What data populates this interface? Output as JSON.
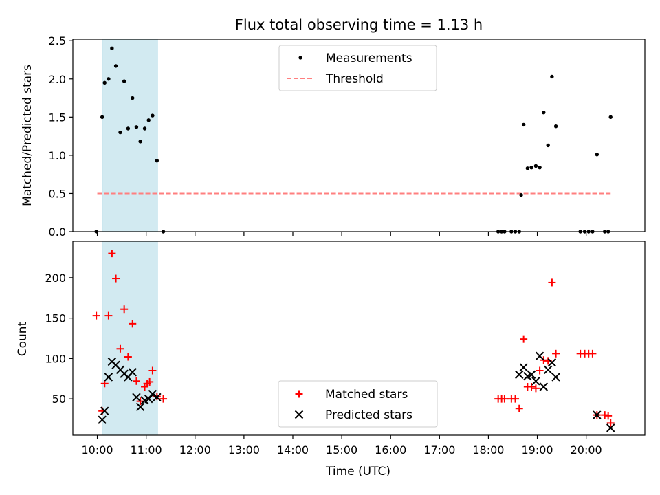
{
  "title": "Flux total observing time = 1.13 h",
  "colors": {
    "measurement": "#000000",
    "threshold": "#ff7f7f",
    "shade": "#add8e6",
    "matched": "#ff0000",
    "predicted": "#000000"
  },
  "chart_data": [
    {
      "type": "scatter",
      "ylabel": "Matched/Predicted stars",
      "xlabel": "",
      "xlim": [
        9.5,
        21.2
      ],
      "ylim": [
        0,
        2.52
      ],
      "yticks": [
        0.0,
        0.5,
        1.0,
        1.5,
        2.0,
        2.5
      ],
      "ytick_labels": [
        "0.0",
        "0.5",
        "1.0",
        "1.5",
        "2.0",
        "2.5"
      ],
      "shaded_span": [
        10.1,
        11.23
      ],
      "threshold": {
        "y": 0.5,
        "x_start": 10.0,
        "x_end": 20.5,
        "label": "Threshold"
      },
      "legend": {
        "position": "top-center",
        "entries": [
          "Measurements",
          "Threshold"
        ]
      },
      "series": [
        {
          "name": "Measurements",
          "marker": "dot",
          "x": [
            9.98,
            10.1,
            10.15,
            10.23,
            10.3,
            10.38,
            10.47,
            10.55,
            10.63,
            10.72,
            10.8,
            10.88,
            10.97,
            11.05,
            11.13,
            11.22,
            11.35,
            18.2,
            18.27,
            18.33,
            18.47,
            18.55,
            18.63,
            18.67,
            18.72,
            18.8,
            18.88,
            18.97,
            19.05,
            19.13,
            19.22,
            19.3,
            19.38,
            19.88,
            19.97,
            20.05,
            20.13,
            20.22,
            20.38,
            20.45,
            20.5
          ],
          "y": [
            0.0,
            1.5,
            1.95,
            2.0,
            2.4,
            2.17,
            1.3,
            1.97,
            1.35,
            1.75,
            1.37,
            1.18,
            1.35,
            1.46,
            1.52,
            0.93,
            0.0,
            0.0,
            0.0,
            0.0,
            0.0,
            0.0,
            0.0,
            0.48,
            1.4,
            0.83,
            0.84,
            0.86,
            0.84,
            1.56,
            1.13,
            2.03,
            1.38,
            0.0,
            0.0,
            0.0,
            0.0,
            1.01,
            0.0,
            0.0,
            1.5
          ]
        }
      ]
    },
    {
      "type": "scatter",
      "ylabel": "Count",
      "xlabel": "Time (UTC)",
      "xlim": [
        9.5,
        21.2
      ],
      "ylim": [
        5,
        245
      ],
      "yticks": [
        50,
        100,
        150,
        200
      ],
      "ytick_labels": [
        "50",
        "100",
        "150",
        "200"
      ],
      "xticks": [
        10,
        11,
        12,
        13,
        14,
        15,
        16,
        17,
        18,
        19,
        20
      ],
      "xtick_labels": [
        "10:00",
        "11:00",
        "12:00",
        "13:00",
        "14:00",
        "15:00",
        "16:00",
        "17:00",
        "18:00",
        "19:00",
        "20:00"
      ],
      "shaded_span": [
        10.1,
        11.23
      ],
      "legend": {
        "position": "bottom-center",
        "entries": [
          "Matched stars",
          "Predicted stars"
        ]
      },
      "series": [
        {
          "name": "Matched stars",
          "marker": "plus",
          "x": [
            9.98,
            10.1,
            10.15,
            10.23,
            10.3,
            10.38,
            10.47,
            10.55,
            10.63,
            10.72,
            10.8,
            10.88,
            10.97,
            11.02,
            11.07,
            11.13,
            11.22,
            11.35,
            18.2,
            18.27,
            18.33,
            18.47,
            18.55,
            18.63,
            18.72,
            18.8,
            18.88,
            18.97,
            19.05,
            19.13,
            19.22,
            19.3,
            19.38,
            19.88,
            19.97,
            20.05,
            20.13,
            20.22,
            20.38,
            20.45,
            20.5
          ],
          "y": [
            153,
            35,
            69,
            153,
            230,
            199,
            112,
            161,
            102,
            143,
            72,
            47,
            65,
            69,
            71,
            85,
            53,
            50,
            50,
            50,
            50,
            50,
            50,
            38,
            124,
            65,
            65,
            63,
            85,
            98,
            97,
            194,
            106,
            106,
            106,
            106,
            106,
            30,
            30,
            29,
            20
          ]
        },
        {
          "name": "Predicted stars",
          "marker": "x",
          "x": [
            10.1,
            10.15,
            10.23,
            10.3,
            10.38,
            10.47,
            10.55,
            10.63,
            10.72,
            10.8,
            10.88,
            10.97,
            11.05,
            11.13,
            11.22,
            18.63,
            18.72,
            18.8,
            18.88,
            18.97,
            19.05,
            19.13,
            19.22,
            19.3,
            19.38,
            20.22,
            20.5
          ],
          "y": [
            24,
            35,
            77,
            96,
            92,
            86,
            81,
            77,
            83,
            52,
            40,
            48,
            50,
            56,
            52,
            80,
            89,
            78,
            80,
            72,
            103,
            65,
            86,
            95,
            77,
            30,
            14
          ]
        }
      ]
    }
  ]
}
